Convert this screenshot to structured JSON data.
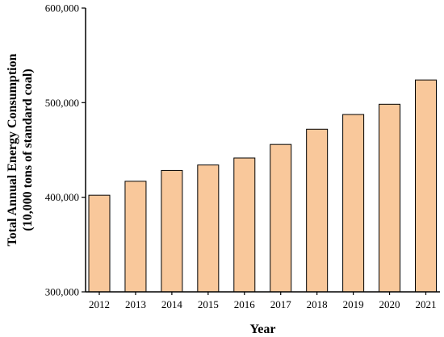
{
  "chart_data": {
    "type": "bar",
    "categories": [
      "2012",
      "2013",
      "2014",
      "2015",
      "2016",
      "2017",
      "2018",
      "2019",
      "2020",
      "2021"
    ],
    "values": [
      402138,
      416913,
      428334,
      434113,
      441492,
      455827,
      471925,
      487488,
      498314,
      524000
    ],
    "title": "",
    "xlabel": "Year",
    "ylabel_line1": "Total Annual Energy Consumption",
    "ylabel_line2": "(10,000 tons of standard coal)",
    "ylim": [
      300000,
      600000
    ],
    "yticks": [
      300000,
      400000,
      500000,
      600000
    ],
    "ytick_labels": [
      "300,000",
      "400,000",
      "500,000",
      "600,000"
    ],
    "bar_color": "#F9C89B",
    "bar_edge_color": "#000000",
    "grid": false,
    "legend": "none"
  }
}
